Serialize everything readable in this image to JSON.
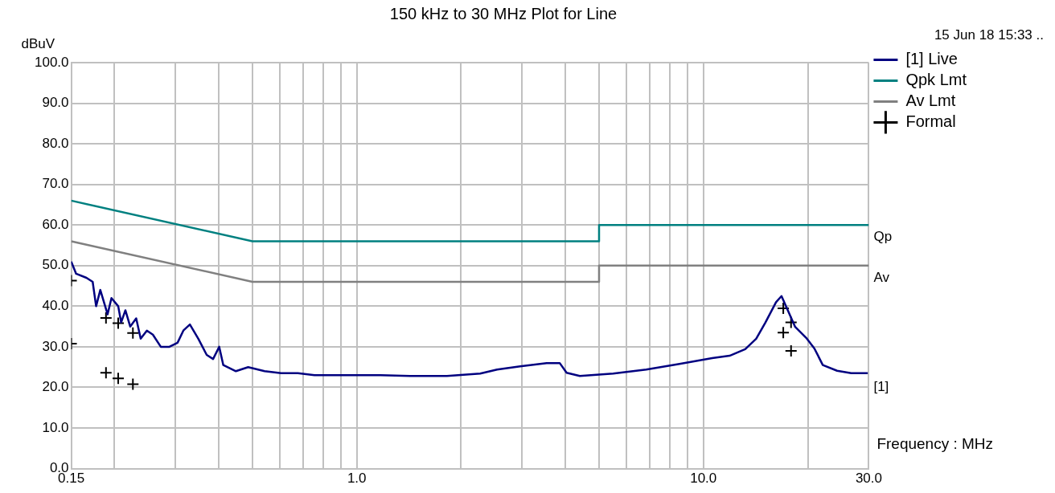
{
  "chart_data": {
    "type": "line",
    "title": "150 kHz to 30 MHz Plot for Line",
    "ylabel": "dBuV",
    "xlabel": "Frequency : MHz",
    "log": "x",
    "grid": true,
    "legend": "top right",
    "marker": "none",
    "xlim": [
      0.15,
      30
    ],
    "xticks": [
      0.15,
      {
        "value": 0.2,
        "label": null
      },
      {
        "value": 0.3,
        "label": null
      },
      {
        "value": 0.4,
        "label": null
      },
      {
        "value": 0.5,
        "label": null
      },
      {
        "value": 0.6,
        "label": null
      },
      {
        "value": 0.7,
        "label": null
      },
      {
        "value": 0.8,
        "label": null
      },
      {
        "value": 0.9,
        "label": null
      },
      {
        "value": 1,
        "label": "1.0"
      },
      {
        "value": 2,
        "label": null
      },
      {
        "value": 3,
        "label": null
      },
      {
        "value": 4,
        "label": null
      },
      {
        "value": 5,
        "label": null
      },
      {
        "value": 6,
        "label": null
      },
      {
        "value": 7,
        "label": null
      },
      {
        "value": 8,
        "label": null
      },
      {
        "value": 9,
        "label": null
      },
      {
        "value": 10,
        "label": "10.0"
      },
      {
        "value": 20,
        "label": null
      },
      {
        "value": 30,
        "label": "30.0"
      }
    ],
    "ylim": [
      0,
      100
    ],
    "yticks": [
      {
        "value": 0,
        "label": "0.0"
      },
      {
        "value": 10,
        "label": "10.0"
      },
      {
        "value": 20,
        "label": "20.0"
      },
      {
        "value": 30,
        "label": "30.0"
      },
      {
        "value": 40,
        "label": "40.0"
      },
      {
        "value": 50,
        "label": "50.0"
      },
      {
        "value": 60,
        "label": "60.0"
      },
      {
        "value": 70,
        "label": "70.0"
      },
      {
        "value": 80,
        "label": "80.0"
      },
      {
        "value": 90,
        "label": "90.0"
      },
      {
        "value": 100,
        "label": "100.0"
      }
    ],
    "series": [
      {
        "name": "[1] Live",
        "color": "#000080",
        "x": [
          0.15,
          0.155,
          0.166,
          0.173,
          0.177,
          0.182,
          0.191,
          0.196,
          0.205,
          0.209,
          0.215,
          0.222,
          0.231,
          0.238,
          0.248,
          0.258,
          0.272,
          0.288,
          0.304,
          0.316,
          0.33,
          0.349,
          0.369,
          0.385,
          0.401,
          0.412,
          0.448,
          0.486,
          0.542,
          0.605,
          0.676,
          0.755,
          0.843,
          1.0,
          1.17,
          1.46,
          1.82,
          2.27,
          2.54,
          2.96,
          3.53,
          3.85,
          4.03,
          4.4,
          5.49,
          6.84,
          8.53,
          10.6,
          11.9,
          13.2,
          14.2,
          15.1,
          16.2,
          16.8,
          18.4,
          19.8,
          20.9,
          22.1,
          24.3,
          26.7,
          29.8
        ],
        "values": [
          51,
          48,
          47,
          46,
          40,
          44,
          38,
          42,
          40,
          36,
          39,
          35,
          37,
          32,
          34,
          33,
          30,
          30,
          31,
          34,
          35.5,
          32,
          28,
          27,
          30,
          25.5,
          24,
          25,
          24,
          23.5,
          23.5,
          23,
          23,
          23,
          23,
          22.8,
          22.8,
          23.4,
          24.4,
          25.2,
          26,
          26,
          23.6,
          22.8,
          23.4,
          24.4,
          25.8,
          27.2,
          27.8,
          29.4,
          32,
          36,
          41,
          42.5,
          34.9,
          32.2,
          29.6,
          25.5,
          24.1,
          23.5,
          23.5
        ]
      },
      {
        "name": "Qpk Lmt",
        "color": "#008080",
        "x": [
          0.15,
          0.5,
          5,
          5,
          30
        ],
        "values": [
          66,
          56,
          56,
          60,
          60
        ]
      },
      {
        "name": "Av Lmt",
        "color": "#808080",
        "x": [
          0.15,
          0.5,
          5,
          5,
          30
        ],
        "values": [
          56,
          46,
          46,
          50,
          50
        ]
      },
      {
        "name": "Formal",
        "type": "scatter",
        "marker": "cross",
        "color": "#000000",
        "x": [
          0.15,
          0.15,
          0.189,
          0.205,
          0.226,
          0.189,
          0.205,
          0.226,
          17.0,
          17.0,
          17.9,
          17.9
        ],
        "values": [
          46.3,
          30.8,
          37.1,
          35.8,
          33.4,
          23.6,
          22.2,
          20.8,
          39.5,
          33.5,
          36.0,
          29.0
        ]
      }
    ],
    "annotations": [
      "15 Jun 18 15:33 ..",
      "Qp",
      "Av",
      "[1]"
    ]
  }
}
